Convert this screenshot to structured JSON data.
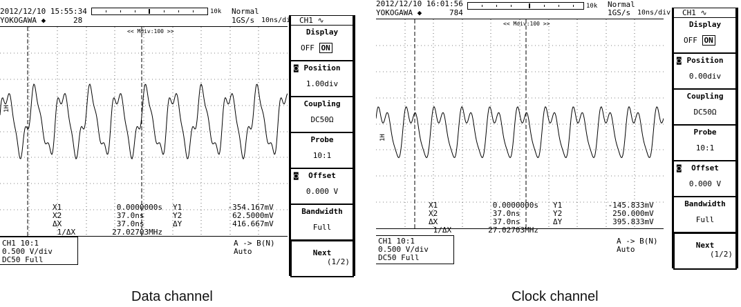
{
  "panels": [
    {
      "datetime": "2012/12/10 15:55:34",
      "brand": "YOKOGAWA",
      "record_count": "28",
      "nav_scale": "10k",
      "trigger_mode": "Normal",
      "sample_rate": "1GS/s",
      "time_div": "10ns/div",
      "zoom_label": "<< Mdiv:100 >>",
      "channel_tab": "CH1",
      "menu": {
        "display_label": "Display",
        "display_off": "OFF",
        "display_on": "ON",
        "position_label": "Position",
        "position_value": "1.00div",
        "coupling_label": "Coupling",
        "coupling_value": "DC50Ω",
        "probe_label": "Probe",
        "probe_value": "10:1",
        "offset_label": "Offset",
        "offset_value": "0.000 V",
        "bandwidth_label": "Bandwidth",
        "bandwidth_value": "Full",
        "next_label": "Next",
        "next_page": "(1/2)"
      },
      "measure": {
        "x1_label": "X1",
        "x1": "0.0000000s",
        "x2_label": "X2",
        "x2": "37.0ns",
        "dx_label": "ΔX",
        "dx": "37.0ns",
        "inv_dx_label": "1/ΔX",
        "inv_dx": "27.02703MHz",
        "y1_label": "Y1",
        "y1": "-354.167mV",
        "y2_label": "Y2",
        "y2": "62.5000mV",
        "dy_label": "ΔY",
        "dy": "416.667mV"
      },
      "status": {
        "line1": "CH1 10:1",
        "line2": "0.500 V/div",
        "line3": "DC50 Full",
        "trigger": "A -> B(N)",
        "trigger_mode": "Auto"
      },
      "caption": "Data channel"
    },
    {
      "datetime": "2012/12/10 16:01:56",
      "brand": "YOKOGAWA",
      "record_count": "784",
      "nav_scale": "10k",
      "trigger_mode": "Normal",
      "sample_rate": "1GS/s",
      "time_div": "10ns/div",
      "zoom_label": "<< Mdiv:100 >>",
      "channel_tab": "CH1",
      "menu": {
        "display_label": "Display",
        "display_off": "OFF",
        "display_on": "ON",
        "position_label": "Position",
        "position_value": "0.00div",
        "coupling_label": "Coupling",
        "coupling_value": "DC50Ω",
        "probe_label": "Probe",
        "probe_value": "10:1",
        "offset_label": "Offset",
        "offset_value": "0.000 V",
        "bandwidth_label": "Bandwidth",
        "bandwidth_value": "Full",
        "next_label": "Next",
        "next_page": "(1/2)"
      },
      "measure": {
        "x1_label": "X1",
        "x1": "0.0000000s",
        "x2_label": "X2",
        "x2": "37.0ns",
        "dx_label": "ΔX",
        "dx": "37.0ns",
        "inv_dx_label": "1/ΔX",
        "inv_dx": "27.02703MHz",
        "y1_label": "Y1",
        "y1": "-145.833mV",
        "y2_label": "Y2",
        "y2": "250.000mV",
        "dy_label": "ΔY",
        "dy": "395.833mV"
      },
      "status": {
        "line1": "CH1 10:1",
        "line2": "0.500 V/div",
        "line3": "DC50 Full",
        "trigger": "A -> B(N)",
        "trigger_mode": "Auto"
      },
      "caption": "Clock channel"
    }
  ]
}
